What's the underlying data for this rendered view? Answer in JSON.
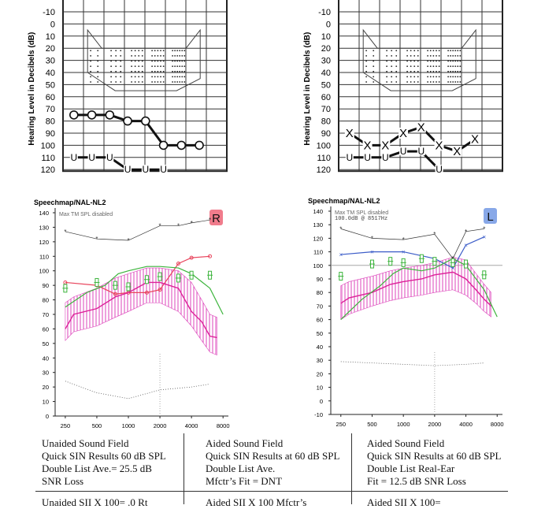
{
  "audiograms": [
    {
      "side": "right",
      "ylabel": "Hearing Level in Decibels (dB)",
      "y_ticks": [
        "-10",
        "0",
        "10",
        "20",
        "30",
        "40",
        "50",
        "60",
        "70",
        "80",
        "90",
        "100",
        "110",
        "120"
      ],
      "ylim": [
        -10,
        120
      ],
      "unaided": {
        "symbol": "O",
        "freq_idx": [
          0,
          1,
          2,
          3,
          4,
          5,
          6,
          7
        ],
        "values": [
          75,
          75,
          75,
          80,
          80,
          100,
          100,
          100
        ]
      },
      "vibro": {
        "symbol": "U",
        "freq_idx": [
          0,
          1,
          2,
          3,
          4,
          5
        ],
        "values": [
          110,
          110,
          110,
          120,
          120,
          120
        ]
      }
    },
    {
      "side": "left",
      "ylabel": "Hearing Level in Decibels (dB)",
      "y_ticks": [
        "-10",
        "0",
        "10",
        "20",
        "30",
        "40",
        "50",
        "60",
        "70",
        "80",
        "90",
        "100",
        "110",
        "120"
      ],
      "ylim": [
        -10,
        120
      ],
      "unaided": {
        "symbol": "X",
        "freq_idx": [
          0,
          1,
          2,
          3,
          4,
          5,
          6,
          7
        ],
        "values": [
          90,
          100,
          100,
          90,
          85,
          100,
          105,
          95
        ]
      },
      "vibro": {
        "symbol": "U",
        "freq_idx": [
          0,
          1,
          2,
          3,
          4,
          5
        ],
        "values": [
          110,
          110,
          110,
          105,
          105,
          120
        ]
      }
    }
  ],
  "chart_data": [
    {
      "type": "line",
      "title": "Speechmap/NAL-NL2",
      "note": "Max TM SPL disabled",
      "badge": "R",
      "badge_color": "#f07c8c",
      "x_ticks": [
        "250",
        "500",
        "1000",
        "2000",
        "4000",
        "8000"
      ],
      "x_log": true,
      "ylim": [
        0,
        140
      ],
      "y_ticks": [
        "0",
        "10",
        "20",
        "30",
        "40",
        "50",
        "60",
        "70",
        "80",
        "90",
        "100",
        "110",
        "120",
        "130",
        "140"
      ],
      "series": [
        {
          "kind": "ucl",
          "color": "#333",
          "x": [
            250,
            500,
            1000,
            2000,
            3000,
            4000,
            6000
          ],
          "y": [
            127,
            122,
            121,
            131,
            131,
            133,
            135
          ]
        },
        {
          "kind": "aided",
          "color": "#e8445c",
          "x": [
            250,
            500,
            750,
            1000,
            1500,
            2000,
            3000,
            4000,
            6000
          ],
          "y": [
            92,
            90,
            84,
            85,
            85,
            87,
            105,
            109,
            110
          ]
        },
        {
          "kind": "target",
          "color": "#dd2299",
          "x": [
            250,
            300,
            500,
            750,
            1000,
            1500,
            2000,
            3000,
            4000,
            5000,
            6000,
            7000
          ],
          "y": [
            60,
            70,
            74,
            82,
            85,
            92,
            92,
            88,
            72,
            65,
            55,
            54
          ]
        },
        {
          "kind": "threshold",
          "color": "#555",
          "x": [
            250,
            500,
            1000,
            2000,
            4000,
            6000
          ],
          "y": [
            24,
            16,
            12,
            18,
            20,
            22
          ]
        },
        {
          "kind": "green",
          "color": "#3cb43c",
          "x": [
            250,
            400,
            600,
            800,
            1000,
            1500,
            2000,
            3000,
            4000,
            6000,
            8000
          ],
          "y": [
            75,
            85,
            90,
            98,
            100,
            103,
            103,
            102,
            98,
            88,
            70
          ]
        }
      ],
      "band": {
        "x": [
          250,
          300,
          500,
          750,
          1000,
          1500,
          2000,
          3000,
          4000,
          5000,
          6000,
          7000
        ],
        "lo": [
          52,
          58,
          62,
          68,
          72,
          78,
          78,
          72,
          62,
          52,
          44,
          42
        ],
        "hi": [
          78,
          82,
          88,
          95,
          98,
          102,
          102,
          100,
          92,
          80,
          70,
          68
        ]
      },
      "markers": {
        "x": [
          250,
          500,
          750,
          1000,
          1500,
          2000,
          3000,
          4000,
          6000
        ],
        "y": [
          88,
          92,
          90,
          89,
          94,
          96,
          95,
          97,
          97
        ]
      }
    },
    {
      "type": "line",
      "title": "Speechmap/NAL-NL2",
      "note": "Max TM SPL disabled",
      "note2": "100.0dB @ 8517Hz",
      "badge": "L",
      "badge_color": "#88a8e8",
      "x_ticks": [
        "250",
        "500",
        "1000",
        "2000",
        "4000",
        "8000"
      ],
      "x_log": true,
      "ylim": [
        -10,
        140
      ],
      "y_ticks": [
        "-10",
        "0",
        "10",
        "20",
        "30",
        "40",
        "50",
        "60",
        "70",
        "80",
        "90",
        "100",
        "110",
        "120",
        "130",
        "140"
      ],
      "series": [
        {
          "kind": "ucl",
          "color": "#333",
          "x": [
            250,
            500,
            1000,
            2000,
            3000,
            4000,
            6000
          ],
          "y": [
            127,
            120,
            119,
            123,
            105,
            125,
            127
          ]
        },
        {
          "kind": "aided",
          "color": "#3b5cc8",
          "x": [
            250,
            500,
            1000,
            2000,
            3000,
            4000,
            6000
          ],
          "y": [
            108,
            110,
            110,
            105,
            98,
            115,
            121
          ]
        },
        {
          "kind": "target",
          "color": "#dd2299",
          "x": [
            250,
            300,
            500,
            750,
            1000,
            1500,
            2000,
            3000,
            4000,
            5000,
            6000,
            7000
          ],
          "y": [
            72,
            76,
            80,
            86,
            88,
            90,
            93,
            95,
            90,
            82,
            75,
            70
          ]
        },
        {
          "kind": "threshold",
          "color": "#555",
          "x": [
            250,
            500,
            1000,
            2000,
            4000,
            6000
          ],
          "y": [
            29,
            28,
            27,
            26,
            27,
            28
          ]
        },
        {
          "kind": "green",
          "color": "#3cb43c",
          "x": [
            250,
            400,
            600,
            800,
            1000,
            1500,
            2000,
            3000,
            4000,
            6000,
            8000
          ],
          "y": [
            60,
            75,
            85,
            94,
            98,
            96,
            98,
            105,
            100,
            82,
            62
          ]
        }
      ],
      "band": {
        "x": [
          250,
          300,
          500,
          750,
          1000,
          1500,
          2000,
          3000,
          4000,
          5000,
          6000,
          7000
        ],
        "lo": [
          60,
          64,
          70,
          74,
          76,
          78,
          80,
          82,
          78,
          72,
          66,
          62
        ],
        "hi": [
          85,
          88,
          92,
          96,
          98,
          100,
          102,
          106,
          104,
          94,
          86,
          80
        ]
      },
      "markers": {
        "x": [
          250,
          500,
          750,
          1000,
          1500,
          2000,
          3000,
          4000,
          6000
        ],
        "y": [
          92,
          101,
          103,
          102,
          105,
          103,
          102,
          101,
          93
        ]
      }
    }
  ],
  "table": {
    "row1": [
      [
        "Unaided Sound Field",
        "Quick SIN Results 60 dB SPL",
        "Double List Ave.= 25.5 dB",
        "SNR Loss"
      ],
      [
        "Aided Sound Field",
        "Quick SIN Results at 60 dB SPL",
        "Double List Ave.",
        "Mfctr’s Fit = DNT"
      ],
      [
        "Aided Sound Field",
        "Quick SIN Results at 60 dB SPL",
        "Double List Real-Ear",
        "Fit = 12.5 dB SNR Loss"
      ]
    ],
    "row2": [
      "Unaided SII X 100= .0 Rt",
      "Aided SII X 100 Mfctr’s",
      "Aided SII X 100="
    ]
  }
}
